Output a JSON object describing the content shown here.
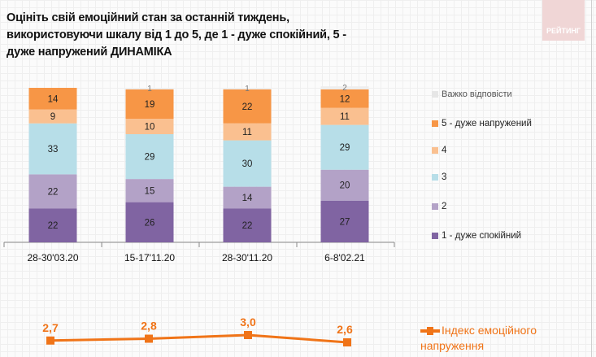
{
  "title": "Оцініть свій емоційний стан за останній тиждень, використовуючи шкалу від 1 до 5, де 1 - дуже спокійний, 5 - дуже напружений ДИНАМІКА",
  "logo_text": "РЕЙТИНГ",
  "chart_data": [
    {
      "type": "bar",
      "stacked": true,
      "categories": [
        "28-30'03.20",
        "15-17'11.20",
        "28-30'11.20",
        "6-8'02.21"
      ],
      "series": [
        {
          "name": "1 - дуже спокійний",
          "color": "#8064a2",
          "values": [
            22,
            26,
            22,
            27
          ]
        },
        {
          "name": "2",
          "color": "#b3a2c7",
          "values": [
            22,
            15,
            14,
            20
          ]
        },
        {
          "name": "3",
          "color": "#b7dee8",
          "values": [
            33,
            29,
            30,
            29
          ]
        },
        {
          "name": "4",
          "color": "#fac090",
          "values": [
            9,
            10,
            11,
            11
          ]
        },
        {
          "name": "5 - дуже напружений",
          "color": "#f79646",
          "values": [
            14,
            19,
            22,
            12
          ]
        },
        {
          "name": "Важко відповісти",
          "color": "#eeeeee",
          "values": [
            null,
            1,
            1,
            2
          ]
        }
      ],
      "legend": "right"
    },
    {
      "type": "line",
      "categories": [
        "28-30'03.20",
        "15-17'11.20",
        "28-30'11.20",
        "6-8'02.21"
      ],
      "series": [
        {
          "name": "Індекс емоційного напруження",
          "color": "#f07418",
          "values": [
            2.7,
            2.8,
            3.0,
            2.6
          ],
          "labels": [
            "2,7",
            "2,8",
            "3,0",
            "2,6"
          ]
        }
      ],
      "legend": "right"
    }
  ]
}
